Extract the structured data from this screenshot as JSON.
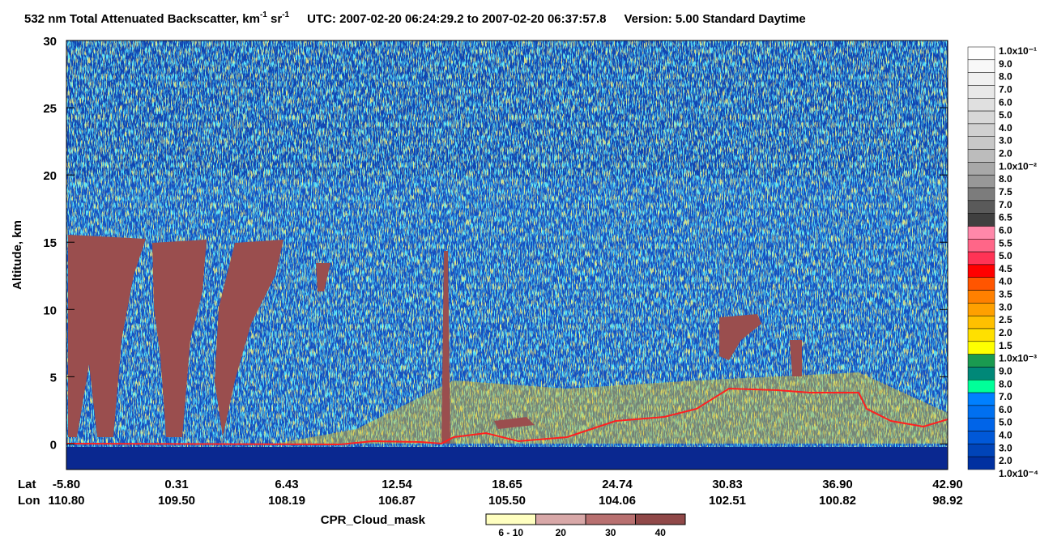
{
  "chart_data": {
    "type": "curtain",
    "title": {
      "product": "532 nm Total Attenuated Backscatter, km",
      "exp1": "-1",
      "unit2": " sr",
      "exp2": "-1",
      "utc": "UTC:  2007-02-20 06:24:29.2  to  2007-02-20 06:37:57.8",
      "version": "Version: 5.00  Standard  Daytime"
    },
    "y_label": "Altitude, km",
    "ylim": [
      -1.9,
      30
    ],
    "yticks": [
      0,
      5,
      10,
      15,
      20,
      25,
      30
    ],
    "x_row_labels": [
      "Lat",
      "Lon"
    ],
    "lat": [
      "-5.80",
      "0.31",
      "6.43",
      "12.54",
      "18.65",
      "24.74",
      "30.83",
      "36.90",
      "42.90"
    ],
    "lon": [
      "110.80",
      "109.50",
      "108.19",
      "106.87",
      "105.50",
      "104.06",
      "102.51",
      "100.82",
      "98.92"
    ],
    "colorbar": {
      "labels": [
        "1.0x10⁻¹",
        "9.0",
        "8.0",
        "7.0",
        "6.0",
        "5.0",
        "4.0",
        "3.0",
        "2.0",
        "1.0x10⁻²",
        "8.0",
        "7.5",
        "7.0",
        "6.5",
        "6.0",
        "5.5",
        "5.0",
        "4.5",
        "4.0",
        "3.5",
        "3.0",
        "2.5",
        "2.0",
        "1.5",
        "1.0x10⁻³",
        "9.0",
        "8.0",
        "7.0",
        "6.0",
        "5.0",
        "4.0",
        "3.0",
        "2.0",
        "1.0x10⁻⁴"
      ],
      "colors": [
        "#ffffff",
        "#f8f8f8",
        "#f0f0f0",
        "#e8e8e8",
        "#e0e0e0",
        "#d8d8d8",
        "#d0d0d0",
        "#c8c8c8",
        "#bcbcbc",
        "#a8a8a8",
        "#989898",
        "#7c7c7c",
        "#5a5a5a",
        "#404040",
        "#ff88aa",
        "#ff6688",
        "#ff3355",
        "#ff0000",
        "#ff5500",
        "#ff8000",
        "#ffa000",
        "#ffc000",
        "#ffe000",
        "#ffff00",
        "#1a9a50",
        "#008878",
        "#00ff99",
        "#0080ff",
        "#0070f0",
        "#0064e8",
        "#0058d8",
        "#0044b8",
        "#0030a0"
      ]
    },
    "cloud_mask": {
      "title": "CPR_Cloud_mask",
      "labels": [
        "6 - 10",
        "20",
        "30",
        "40"
      ],
      "colors": [
        "#ffffc0",
        "#d8a8a8",
        "#b87070",
        "#904848"
      ]
    }
  }
}
